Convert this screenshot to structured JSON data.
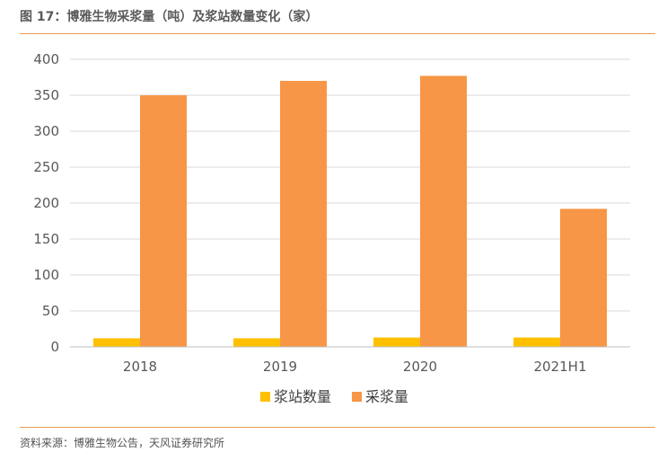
{
  "figure": {
    "title": "图 17：博雅生物采浆量（吨）及浆站数量变化（家）",
    "source": "资料来源：博雅生物公告，天风证券研究所"
  },
  "colors": {
    "stations": "#FFC000",
    "volume": "#F79646",
    "grid": "#D9D9D9",
    "axis": "#BFBFBF"
  },
  "chart_data": {
    "type": "bar",
    "categories": [
      "2018",
      "2019",
      "2020",
      "2021H1"
    ],
    "series": [
      {
        "name": "浆站数量",
        "values": [
          12,
          12,
          13,
          13
        ]
      },
      {
        "name": "采浆量",
        "values": [
          350,
          370,
          377,
          192
        ]
      }
    ],
    "ylim": [
      0,
      400
    ],
    "yticks": [
      "0",
      "50",
      "100",
      "150",
      "200",
      "250",
      "300",
      "350",
      "400"
    ],
    "grid": true,
    "legend": "bottom"
  }
}
